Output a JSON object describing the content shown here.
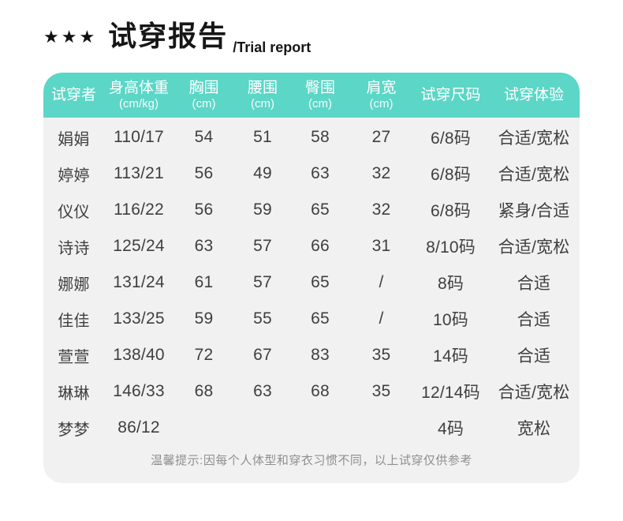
{
  "page": {
    "stars": "★★★",
    "title": "试穿报告",
    "subtitle": "/Trial report"
  },
  "colors": {
    "accent": "#5cd6c7",
    "body_bg": "#f1f1f2",
    "text": "#3f3f3f",
    "note": "#8f8f8f"
  },
  "table": {
    "columns": [
      {
        "label": "试穿者",
        "sub": ""
      },
      {
        "label": "身高体重",
        "sub": "(cm/kg)"
      },
      {
        "label": "胸围",
        "sub": "(cm)"
      },
      {
        "label": "腰围",
        "sub": "(cm)"
      },
      {
        "label": "臀围",
        "sub": "(cm)"
      },
      {
        "label": "肩宽",
        "sub": "(cm)"
      },
      {
        "label": "试穿尺码",
        "sub": ""
      },
      {
        "label": "试穿体验",
        "sub": ""
      }
    ],
    "rows": [
      [
        "娟娟",
        "110/17",
        "54",
        "51",
        "58",
        "27",
        "6/8码",
        "合适/宽松"
      ],
      [
        "婷婷",
        "113/21",
        "56",
        "49",
        "63",
        "32",
        "6/8码",
        "合适/宽松"
      ],
      [
        "仪仪",
        "116/22",
        "56",
        "59",
        "65",
        "32",
        "6/8码",
        "紧身/合适"
      ],
      [
        "诗诗",
        "125/24",
        "63",
        "57",
        "66",
        "31",
        "8/10码",
        "合适/宽松"
      ],
      [
        "娜娜",
        "131/24",
        "61",
        "57",
        "65",
        "/",
        "8码",
        "合适"
      ],
      [
        "佳佳",
        "133/25",
        "59",
        "55",
        "65",
        "/",
        "10码",
        "合适"
      ],
      [
        "萱萱",
        "138/40",
        "72",
        "67",
        "83",
        "35",
        "14码",
        "合适"
      ],
      [
        "琳琳",
        "146/33",
        "68",
        "63",
        "68",
        "35",
        "12/14码",
        "合适/宽松"
      ],
      [
        "梦梦",
        "86/12",
        "",
        "",
        "",
        "",
        "4码",
        "宽松"
      ]
    ],
    "note": "温馨提示:因每个人体型和穿衣习惯不同，以上试穿仅供参考"
  }
}
